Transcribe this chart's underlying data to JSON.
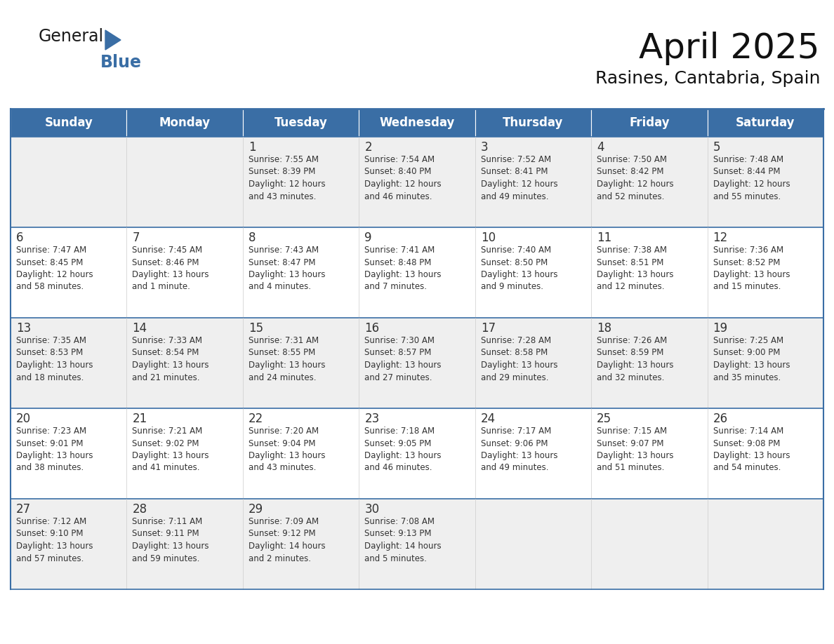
{
  "title": "April 2025",
  "subtitle": "Rasines, Cantabria, Spain",
  "header_color": "#3a6ea5",
  "header_text_color": "#ffffff",
  "border_color": "#3a6ea5",
  "text_color": "#333333",
  "logo_general_color": "#1a1a1a",
  "logo_blue_color": "#3a6ea5",
  "logo_triangle_color": "#3a6ea5",
  "days_of_week": [
    "Sunday",
    "Monday",
    "Tuesday",
    "Wednesday",
    "Thursday",
    "Friday",
    "Saturday"
  ],
  "weeks": [
    [
      {
        "day": "",
        "info": ""
      },
      {
        "day": "",
        "info": ""
      },
      {
        "day": "1",
        "info": "Sunrise: 7:55 AM\nSunset: 8:39 PM\nDaylight: 12 hours\nand 43 minutes."
      },
      {
        "day": "2",
        "info": "Sunrise: 7:54 AM\nSunset: 8:40 PM\nDaylight: 12 hours\nand 46 minutes."
      },
      {
        "day": "3",
        "info": "Sunrise: 7:52 AM\nSunset: 8:41 PM\nDaylight: 12 hours\nand 49 minutes."
      },
      {
        "day": "4",
        "info": "Sunrise: 7:50 AM\nSunset: 8:42 PM\nDaylight: 12 hours\nand 52 minutes."
      },
      {
        "day": "5",
        "info": "Sunrise: 7:48 AM\nSunset: 8:44 PM\nDaylight: 12 hours\nand 55 minutes."
      }
    ],
    [
      {
        "day": "6",
        "info": "Sunrise: 7:47 AM\nSunset: 8:45 PM\nDaylight: 12 hours\nand 58 minutes."
      },
      {
        "day": "7",
        "info": "Sunrise: 7:45 AM\nSunset: 8:46 PM\nDaylight: 13 hours\nand 1 minute."
      },
      {
        "day": "8",
        "info": "Sunrise: 7:43 AM\nSunset: 8:47 PM\nDaylight: 13 hours\nand 4 minutes."
      },
      {
        "day": "9",
        "info": "Sunrise: 7:41 AM\nSunset: 8:48 PM\nDaylight: 13 hours\nand 7 minutes."
      },
      {
        "day": "10",
        "info": "Sunrise: 7:40 AM\nSunset: 8:50 PM\nDaylight: 13 hours\nand 9 minutes."
      },
      {
        "day": "11",
        "info": "Sunrise: 7:38 AM\nSunset: 8:51 PM\nDaylight: 13 hours\nand 12 minutes."
      },
      {
        "day": "12",
        "info": "Sunrise: 7:36 AM\nSunset: 8:52 PM\nDaylight: 13 hours\nand 15 minutes."
      }
    ],
    [
      {
        "day": "13",
        "info": "Sunrise: 7:35 AM\nSunset: 8:53 PM\nDaylight: 13 hours\nand 18 minutes."
      },
      {
        "day": "14",
        "info": "Sunrise: 7:33 AM\nSunset: 8:54 PM\nDaylight: 13 hours\nand 21 minutes."
      },
      {
        "day": "15",
        "info": "Sunrise: 7:31 AM\nSunset: 8:55 PM\nDaylight: 13 hours\nand 24 minutes."
      },
      {
        "day": "16",
        "info": "Sunrise: 7:30 AM\nSunset: 8:57 PM\nDaylight: 13 hours\nand 27 minutes."
      },
      {
        "day": "17",
        "info": "Sunrise: 7:28 AM\nSunset: 8:58 PM\nDaylight: 13 hours\nand 29 minutes."
      },
      {
        "day": "18",
        "info": "Sunrise: 7:26 AM\nSunset: 8:59 PM\nDaylight: 13 hours\nand 32 minutes."
      },
      {
        "day": "19",
        "info": "Sunrise: 7:25 AM\nSunset: 9:00 PM\nDaylight: 13 hours\nand 35 minutes."
      }
    ],
    [
      {
        "day": "20",
        "info": "Sunrise: 7:23 AM\nSunset: 9:01 PM\nDaylight: 13 hours\nand 38 minutes."
      },
      {
        "day": "21",
        "info": "Sunrise: 7:21 AM\nSunset: 9:02 PM\nDaylight: 13 hours\nand 41 minutes."
      },
      {
        "day": "22",
        "info": "Sunrise: 7:20 AM\nSunset: 9:04 PM\nDaylight: 13 hours\nand 43 minutes."
      },
      {
        "day": "23",
        "info": "Sunrise: 7:18 AM\nSunset: 9:05 PM\nDaylight: 13 hours\nand 46 minutes."
      },
      {
        "day": "24",
        "info": "Sunrise: 7:17 AM\nSunset: 9:06 PM\nDaylight: 13 hours\nand 49 minutes."
      },
      {
        "day": "25",
        "info": "Sunrise: 7:15 AM\nSunset: 9:07 PM\nDaylight: 13 hours\nand 51 minutes."
      },
      {
        "day": "26",
        "info": "Sunrise: 7:14 AM\nSunset: 9:08 PM\nDaylight: 13 hours\nand 54 minutes."
      }
    ],
    [
      {
        "day": "27",
        "info": "Sunrise: 7:12 AM\nSunset: 9:10 PM\nDaylight: 13 hours\nand 57 minutes."
      },
      {
        "day": "28",
        "info": "Sunrise: 7:11 AM\nSunset: 9:11 PM\nDaylight: 13 hours\nand 59 minutes."
      },
      {
        "day": "29",
        "info": "Sunrise: 7:09 AM\nSunset: 9:12 PM\nDaylight: 14 hours\nand 2 minutes."
      },
      {
        "day": "30",
        "info": "Sunrise: 7:08 AM\nSunset: 9:13 PM\nDaylight: 14 hours\nand 5 minutes."
      },
      {
        "day": "",
        "info": ""
      },
      {
        "day": "",
        "info": ""
      },
      {
        "day": "",
        "info": ""
      }
    ]
  ],
  "fig_width": 11.88,
  "fig_height": 9.18,
  "dpi": 100,
  "title_fontsize": 36,
  "subtitle_fontsize": 18,
  "header_fontsize": 12,
  "day_num_fontsize": 12,
  "cell_text_fontsize": 8.5,
  "logo_general_fontsize": 17,
  "logo_blue_fontsize": 17
}
